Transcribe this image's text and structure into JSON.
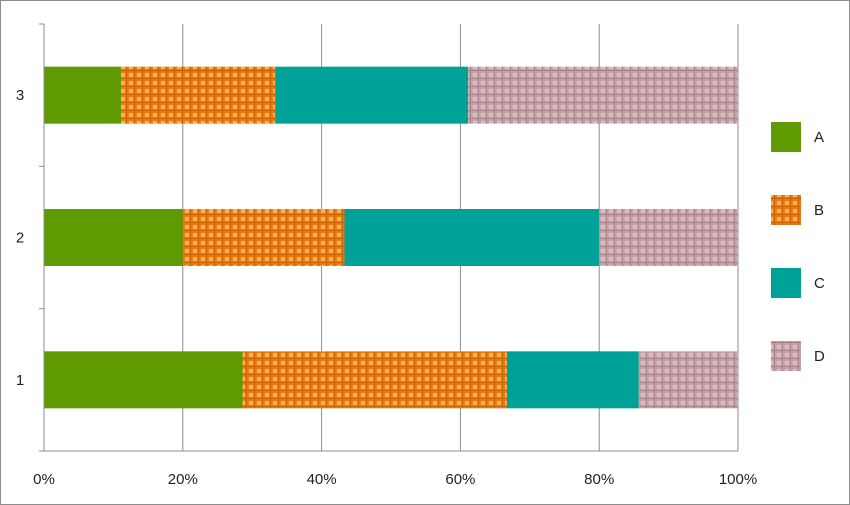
{
  "chart_data": {
    "type": "bar",
    "orientation": "horizontal",
    "stacked": "percent",
    "title": "",
    "xlabel": "",
    "ylabel": "",
    "xlim": [
      0,
      100
    ],
    "x_ticks": [
      "0%",
      "20%",
      "40%",
      "60%",
      "80%",
      "100%"
    ],
    "categories": [
      "1",
      "2",
      "3"
    ],
    "series": [
      {
        "name": "A",
        "values": [
          28.6,
          20.0,
          11.1
        ],
        "color": "#5f9a00",
        "pattern": "solid"
      },
      {
        "name": "B",
        "values": [
          38.1,
          23.3,
          22.2
        ],
        "color": "#ec7c14",
        "pattern": "checker"
      },
      {
        "name": "C",
        "values": [
          19.0,
          36.7,
          27.8
        ],
        "color": "#00a196",
        "pattern": "solid"
      },
      {
        "name": "D",
        "values": [
          14.3,
          20.0,
          38.9
        ],
        "color": "#c4a3a8",
        "pattern": "checker"
      }
    ],
    "grid": "vertical",
    "legend_position": "right"
  }
}
